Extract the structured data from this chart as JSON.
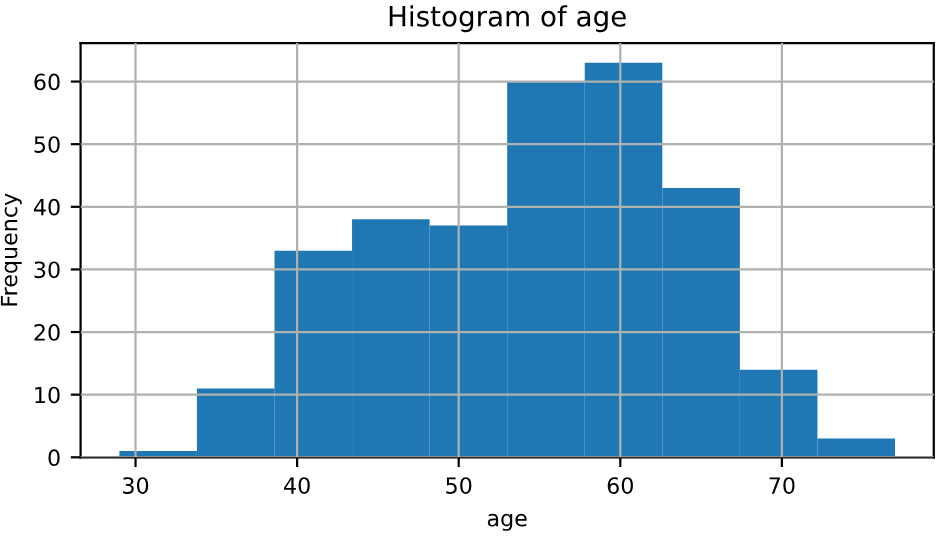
{
  "chart_data": {
    "type": "histogram",
    "title": "Histogram of age",
    "xlabel": "age",
    "ylabel": "Frequency",
    "bins": [
      29,
      33.8,
      38.6,
      43.4,
      48.2,
      53,
      57.8,
      62.6,
      67.4,
      72.2,
      77
    ],
    "values": [
      1,
      11,
      33,
      38,
      37,
      60,
      63,
      43,
      14,
      3
    ],
    "color": "#1f77b4",
    "xlim": [
      26.6,
      79.4
    ],
    "ylim": [
      0,
      66.15
    ],
    "xticks": [
      30,
      40,
      50,
      60,
      70
    ],
    "yticks": [
      0,
      10,
      20,
      30,
      40,
      50,
      60
    ],
    "grid": true
  }
}
